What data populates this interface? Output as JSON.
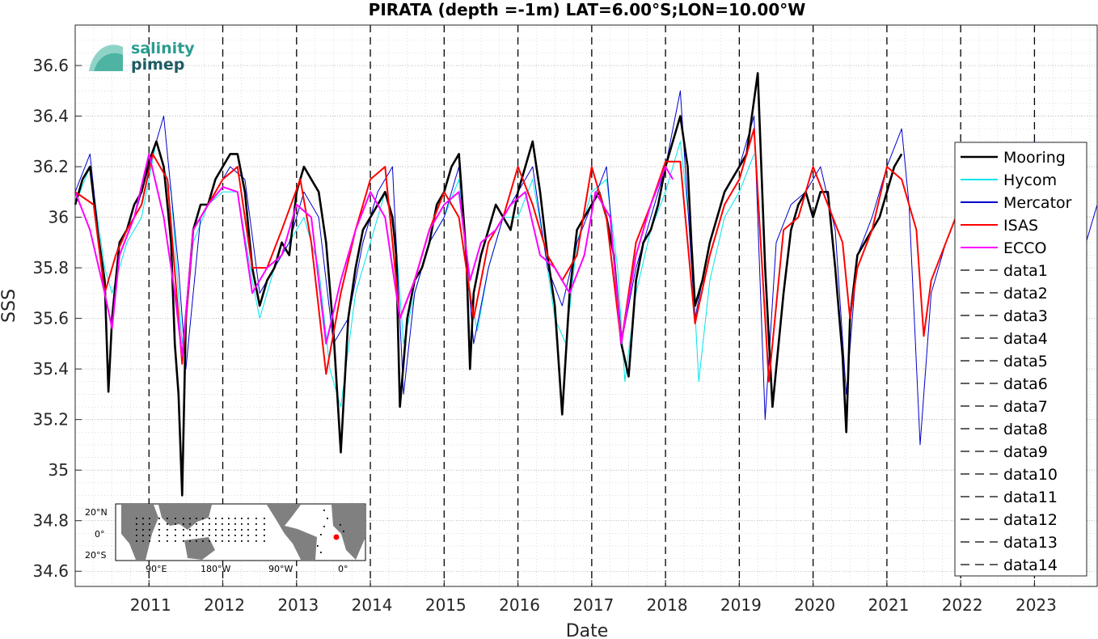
{
  "chart_data": {
    "type": "line",
    "title": "PIRATA (depth =-1m) LAT=6.00°S;LON=10.00°W",
    "xlabel": "Date",
    "ylabel": "SSS",
    "xlim": [
      2010.0,
      2023.85
    ],
    "ylim": [
      34.54,
      36.76
    ],
    "xticks": [
      "2011",
      "2012",
      "2013",
      "2014",
      "2015",
      "2016",
      "2017",
      "2018",
      "2019",
      "2020",
      "2021",
      "2022",
      "2023"
    ],
    "yticks": [
      "34.6",
      "34.8",
      "35",
      "35.2",
      "35.4",
      "35.6",
      "35.8",
      "36",
      "36.2",
      "36.4",
      "36.6"
    ],
    "grid": true,
    "legend_position": "right",
    "vertical_markers": [
      2011,
      2012,
      2013,
      2014,
      2015,
      2016,
      2017,
      2018,
      2019,
      2020,
      2021,
      2022,
      2023
    ],
    "series": [
      {
        "name": "Mooring",
        "color": "#000000",
        "x": [
          2010.0,
          2010.1,
          2010.2,
          2010.3,
          2010.4,
          2010.45,
          2010.5,
          2010.6,
          2010.7,
          2010.8,
          2010.9,
          2011.0,
          2011.1,
          2011.2,
          2011.3,
          2011.35,
          2011.4,
          2011.45,
          2011.5,
          2011.6,
          2011.7,
          2011.8,
          2011.9,
          2012.0,
          2012.1,
          2012.2,
          2012.3,
          2012.4,
          2012.5,
          2012.6,
          2012.7,
          2012.8,
          2012.9,
          2013.0,
          2013.1,
          2013.2,
          2013.3,
          2013.4,
          2013.5,
          2013.6,
          2013.7,
          2013.8,
          2013.9,
          2014.0,
          2014.1,
          2014.2,
          2014.3,
          2014.35,
          2014.4,
          2014.5,
          2014.6,
          2014.7,
          2014.8,
          2014.9,
          2015.0,
          2015.1,
          2015.2,
          2015.3,
          2015.35,
          2015.4,
          2015.5,
          2015.6,
          2015.7,
          2015.8,
          2015.9,
          2016.0,
          2016.1,
          2016.2,
          2016.3,
          2016.4,
          2016.5,
          2016.6,
          2016.7,
          2016.8,
          2016.9,
          2017.0,
          2017.1,
          2017.2,
          2017.3,
          2017.4,
          2017.5,
          2017.6,
          2017.7,
          2017.8,
          2017.9,
          2018.0,
          2018.1,
          2018.2,
          2018.3,
          2018.35,
          2018.4,
          2018.5,
          2018.6,
          2018.7,
          2018.8,
          2018.9,
          2019.0,
          2019.1,
          2019.25,
          2019.35,
          2019.45,
          2019.6,
          2019.7,
          2019.8,
          2019.9,
          2020.0,
          2020.1,
          2020.2,
          2020.3,
          2020.4,
          2020.45,
          2020.5,
          2020.6,
          2020.7,
          2020.8,
          2020.9,
          2021.0,
          2021.1,
          2021.2
        ],
        "y": [
          36.05,
          36.15,
          36.2,
          35.95,
          35.75,
          35.31,
          35.6,
          35.9,
          35.95,
          36.05,
          36.1,
          36.22,
          36.3,
          36.2,
          35.9,
          35.5,
          35.3,
          34.9,
          35.6,
          35.95,
          36.05,
          36.05,
          36.15,
          36.2,
          36.25,
          36.25,
          36.1,
          35.8,
          35.65,
          35.75,
          35.8,
          35.9,
          35.85,
          36.1,
          36.2,
          36.15,
          36.1,
          35.9,
          35.55,
          35.07,
          35.6,
          35.8,
          35.95,
          36.0,
          36.05,
          36.1,
          36.0,
          35.85,
          35.25,
          35.6,
          35.75,
          35.8,
          35.9,
          36.05,
          36.1,
          36.2,
          36.25,
          35.85,
          35.4,
          35.7,
          35.85,
          35.95,
          36.05,
          36.0,
          35.95,
          36.1,
          36.2,
          36.3,
          36.1,
          35.85,
          35.65,
          35.22,
          35.7,
          35.95,
          36.0,
          36.05,
          36.1,
          36.0,
          35.85,
          35.5,
          35.37,
          35.75,
          35.9,
          35.95,
          36.05,
          36.2,
          36.3,
          36.4,
          36.2,
          35.9,
          35.65,
          35.75,
          35.9,
          36.0,
          36.1,
          36.15,
          36.2,
          36.25,
          36.57,
          35.8,
          35.25,
          35.7,
          35.95,
          36.05,
          36.1,
          36.0,
          36.1,
          36.1,
          35.8,
          35.45,
          35.15,
          35.6,
          35.85,
          35.9,
          35.95,
          36.0,
          36.1,
          36.2,
          36.25
        ]
      },
      {
        "name": "Hycom",
        "color": "#00e5ee",
        "x": [
          2010.0,
          2010.2,
          2010.4,
          2010.5,
          2010.7,
          2010.9,
          2011.1,
          2011.3,
          2011.45,
          2011.6,
          2011.8,
          2012.0,
          2012.2,
          2012.4,
          2012.5,
          2012.7,
          2012.9,
          2013.1,
          2013.3,
          2013.45,
          2013.6,
          2013.8,
          2014.0,
          2014.2,
          2014.35,
          2014.45,
          2014.6,
          2014.8,
          2015.0,
          2015.2,
          2015.35,
          2015.45,
          2015.6,
          2015.8,
          2016.0,
          2016.2,
          2016.35,
          2016.5,
          2016.65,
          2016.8,
          2017.0,
          2017.2,
          2017.35,
          2017.45,
          2017.6,
          2017.8,
          2018.0,
          2018.2,
          2018.35,
          2018.45,
          2018.6,
          2018.8,
          2019.0,
          2019.2
        ],
        "y": [
          36.05,
          36.2,
          35.8,
          35.7,
          35.9,
          36.0,
          36.3,
          36.1,
          35.5,
          35.9,
          36.05,
          36.1,
          36.1,
          35.75,
          35.6,
          35.8,
          35.9,
          36.0,
          35.8,
          35.4,
          35.25,
          35.7,
          35.9,
          36.1,
          35.9,
          35.5,
          35.7,
          35.9,
          36.0,
          36.15,
          35.7,
          35.55,
          35.8,
          36.0,
          36.0,
          36.15,
          35.9,
          35.6,
          35.5,
          35.9,
          36.1,
          36.15,
          35.8,
          35.35,
          35.7,
          35.95,
          36.1,
          36.3,
          35.9,
          35.35,
          35.75,
          36.0,
          36.1,
          36.25
        ]
      },
      {
        "name": "Mercator",
        "color": "#0000cc",
        "x": [
          2010.0,
          2010.2,
          2010.4,
          2010.6,
          2010.8,
          2011.0,
          2011.2,
          2011.4,
          2011.5,
          2011.7,
          2011.9,
          2012.1,
          2012.3,
          2012.5,
          2012.7,
          2012.9,
          2013.1,
          2013.3,
          2013.5,
          2013.7,
          2013.9,
          2014.1,
          2014.3,
          2014.45,
          2014.6,
          2014.8,
          2015.0,
          2015.2,
          2015.4,
          2015.6,
          2015.8,
          2016.0,
          2016.2,
          2016.4,
          2016.6,
          2016.8,
          2017.0,
          2017.2,
          2017.4,
          2017.6,
          2017.8,
          2018.0,
          2018.2,
          2018.4,
          2018.6,
          2018.8,
          2019.0,
          2019.2,
          2019.35,
          2019.5,
          2019.7,
          2019.9,
          2020.1,
          2020.3,
          2020.45,
          2020.6,
          2020.8,
          2021.0,
          2021.2,
          2021.3,
          2021.45,
          2021.6,
          2021.8,
          2022.0,
          2022.2,
          2022.4,
          2022.6,
          2022.8,
          2023.0,
          2023.1,
          2023.3,
          2023.5,
          2023.7,
          2023.85
        ],
        "y": [
          36.1,
          36.25,
          35.7,
          35.9,
          36.0,
          36.2,
          36.4,
          35.8,
          35.4,
          36.0,
          36.1,
          36.2,
          36.15,
          35.7,
          35.8,
          35.9,
          36.1,
          36.0,
          35.5,
          35.6,
          35.9,
          36.1,
          36.2,
          35.3,
          35.7,
          35.9,
          36.0,
          36.2,
          35.5,
          35.8,
          36.0,
          36.1,
          36.2,
          35.8,
          35.65,
          35.9,
          36.05,
          36.2,
          35.5,
          35.8,
          36.0,
          36.2,
          36.5,
          35.6,
          35.9,
          36.1,
          36.2,
          36.4,
          35.2,
          35.9,
          36.05,
          36.1,
          36.2,
          35.95,
          35.3,
          35.85,
          36.0,
          36.2,
          36.35,
          36.05,
          35.1,
          35.7,
          35.9,
          36.05,
          36.1,
          36.15,
          36.05,
          36.1,
          36.3,
          36.0,
          36.05,
          36.1,
          35.9,
          36.05
        ]
      },
      {
        "name": "ISAS",
        "color": "#ff0000",
        "x": [
          2010.0,
          2010.25,
          2010.4,
          2010.55,
          2010.7,
          2010.9,
          2011.05,
          2011.25,
          2011.45,
          2011.6,
          2011.8,
          2012.0,
          2012.2,
          2012.4,
          2012.6,
          2012.8,
          2013.05,
          2013.2,
          2013.4,
          2013.6,
          2013.8,
          2014.0,
          2014.2,
          2014.4,
          2014.6,
          2014.8,
          2015.0,
          2015.2,
          2015.4,
          2015.6,
          2015.8,
          2016.0,
          2016.2,
          2016.4,
          2016.6,
          2016.8,
          2017.0,
          2017.2,
          2017.4,
          2017.6,
          2017.8,
          2018.0,
          2018.2,
          2018.4,
          2018.6,
          2018.8,
          2019.0,
          2019.2,
          2019.4,
          2019.6,
          2019.8,
          2020.0,
          2020.2,
          2020.4,
          2020.5,
          2020.6,
          2020.8,
          2021.0,
          2021.2,
          2021.4,
          2021.5,
          2021.6,
          2021.8,
          2022.0
        ],
        "y": [
          36.1,
          36.05,
          35.7,
          35.85,
          35.95,
          36.05,
          36.25,
          36.15,
          35.42,
          35.95,
          36.05,
          36.15,
          36.2,
          35.8,
          35.8,
          35.95,
          36.15,
          35.9,
          35.38,
          35.7,
          35.95,
          36.15,
          36.2,
          35.6,
          35.75,
          35.95,
          36.1,
          36.0,
          35.6,
          35.9,
          36.0,
          36.2,
          36.05,
          35.85,
          35.75,
          35.85,
          36.2,
          36.0,
          35.5,
          35.9,
          36.05,
          36.22,
          36.22,
          35.58,
          35.85,
          36.05,
          36.15,
          36.35,
          35.35,
          35.95,
          36.0,
          36.2,
          36.05,
          35.9,
          35.6,
          35.8,
          35.95,
          36.2,
          36.15,
          35.95,
          35.53,
          35.75,
          35.9,
          36.05
        ]
      },
      {
        "name": "ECCO",
        "color": "#ff00ff",
        "x": [
          2010.0,
          2010.2,
          2010.4,
          2010.5,
          2010.6,
          2010.8,
          2011.0,
          2011.2,
          2011.35,
          2011.45,
          2011.6,
          2011.8,
          2012.0,
          2012.2,
          2012.4,
          2012.6,
          2012.8,
          2013.0,
          2013.2,
          2013.4,
          2013.6,
          2013.8,
          2014.0,
          2014.2,
          2014.4,
          2014.6,
          2014.8,
          2015.0,
          2015.2,
          2015.35,
          2015.5,
          2015.7,
          2015.9,
          2016.1,
          2016.3,
          2016.5,
          2016.7,
          2016.9,
          2017.05,
          2017.25,
          2017.4,
          2017.6,
          2017.8,
          2018.0,
          2018.1
        ],
        "y": [
          36.1,
          35.95,
          35.7,
          35.56,
          35.85,
          36.0,
          36.25,
          36.0,
          35.7,
          35.45,
          35.95,
          36.05,
          36.12,
          36.1,
          35.7,
          35.8,
          35.85,
          36.05,
          36.0,
          35.5,
          35.75,
          35.95,
          36.1,
          36.0,
          35.6,
          35.75,
          35.95,
          36.05,
          36.1,
          35.75,
          35.9,
          35.95,
          36.05,
          36.1,
          35.85,
          35.8,
          35.7,
          35.85,
          36.1,
          36.0,
          35.5,
          35.85,
          36.05,
          36.2,
          36.15
        ]
      }
    ],
    "legend": [
      "Mooring",
      "Hycom",
      "Mercator",
      "ISAS",
      "ECCO",
      "data1",
      "data2",
      "data3",
      "data4",
      "data5",
      "data6",
      "data7",
      "data8",
      "data9",
      "data10",
      "data11",
      "data12",
      "data13",
      "data14"
    ]
  },
  "logo": {
    "line1": "salinity",
    "line2": "pimep"
  },
  "inset_map": {
    "lat_labels": [
      "20°N",
      "0°",
      "20°S"
    ],
    "lon_labels": [
      "90°E",
      "180°W",
      "90°W",
      "0°"
    ],
    "marker_color": "#ff0000"
  }
}
